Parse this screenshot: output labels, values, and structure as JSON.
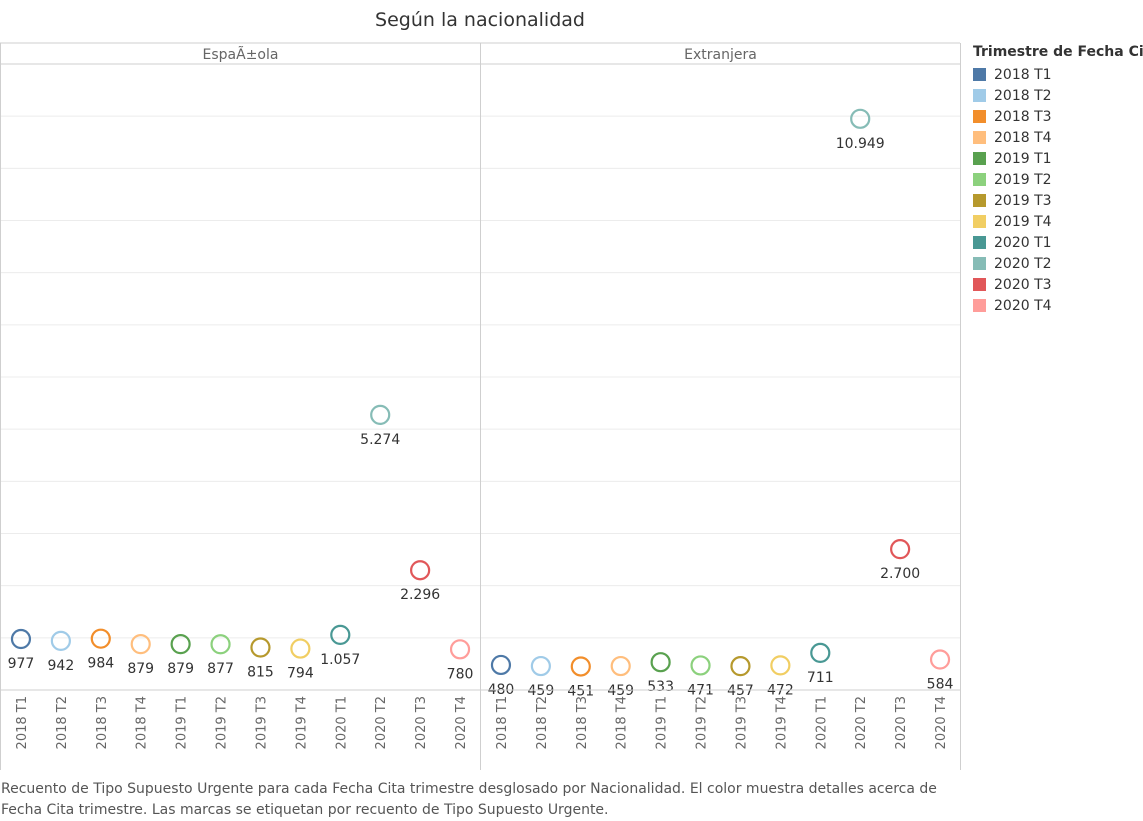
{
  "title": "Según la nacionalidad",
  "chart_data": {
    "type": "scatter",
    "facets": [
      "EspaÃ±ola",
      "Extranjera"
    ],
    "categories": [
      "2018 T1",
      "2018 T2",
      "2018 T3",
      "2018 T4",
      "2019 T1",
      "2019 T2",
      "2019 T3",
      "2019 T4",
      "2020 T1",
      "2020 T2",
      "2020 T3",
      "2020 T4"
    ],
    "series": [
      {
        "facet": "EspaÃ±ola",
        "values": [
          977,
          942,
          984,
          879,
          879,
          877,
          815,
          794,
          1057,
          5274,
          2296,
          780
        ],
        "labels": [
          "977",
          "942",
          "984",
          "879",
          "879",
          "877",
          "815",
          "794",
          "1.057",
          "5.274",
          "2.296",
          "780"
        ]
      },
      {
        "facet": "Extranjera",
        "values": [
          480,
          459,
          451,
          459,
          533,
          471,
          457,
          472,
          711,
          10949,
          2700,
          584
        ],
        "labels": [
          "480",
          "459",
          "451",
          "459",
          "533",
          "471",
          "457",
          "472",
          "711",
          "10.949",
          "2.700",
          "584"
        ]
      }
    ],
    "ylim": [
      0,
      12000
    ],
    "grid": true,
    "legend_position": "right"
  },
  "legend": {
    "title": "Trimestre de Fecha Cita",
    "items": [
      {
        "label": "2018 T1",
        "color": "#4e79a7"
      },
      {
        "label": "2018 T2",
        "color": "#a0cbe8"
      },
      {
        "label": "2018 T3",
        "color": "#f28e2b"
      },
      {
        "label": "2018 T4",
        "color": "#ffbe7d"
      },
      {
        "label": "2019 T1",
        "color": "#59a14f"
      },
      {
        "label": "2019 T2",
        "color": "#8cd17d"
      },
      {
        "label": "2019 T3",
        "color": "#b6992d"
      },
      {
        "label": "2019 T4",
        "color": "#f1ce63"
      },
      {
        "label": "2020 T1",
        "color": "#499894"
      },
      {
        "label": "2020 T2",
        "color": "#86bcb6"
      },
      {
        "label": "2020 T3",
        "color": "#e15759"
      },
      {
        "label": "2020 T4",
        "color": "#ff9d9a"
      }
    ]
  },
  "caption": "Recuento de Tipo Supuesto Urgente para cada Fecha Cita trimestre desglosado por Nacionalidad. El color muestra detalles acerca de Fecha Cita trimestre. Las marcas se etiquetan por recuento de Tipo Supuesto Urgente."
}
